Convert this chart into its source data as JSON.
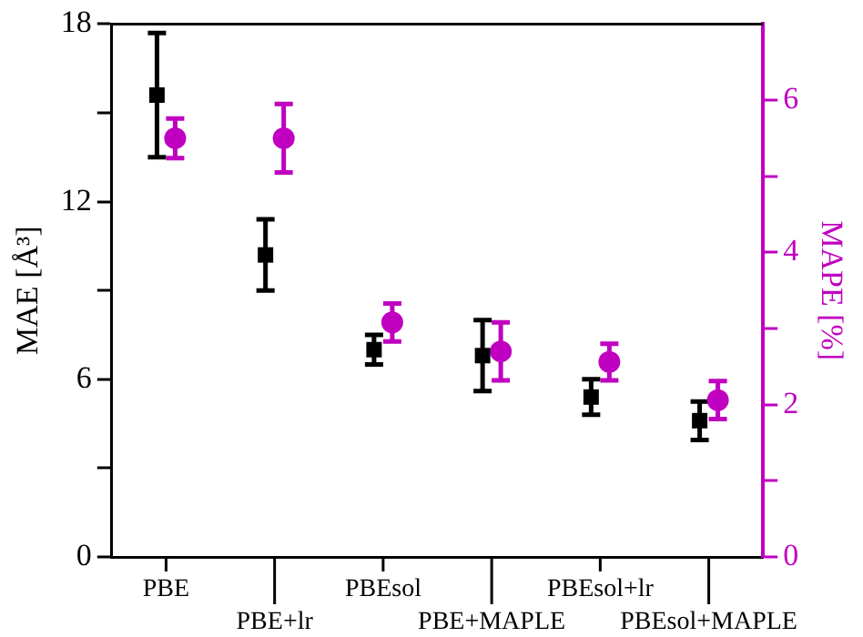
{
  "chart_data": {
    "type": "scatter",
    "categories": [
      "PBE",
      "PBE+lr",
      "PBEsol",
      "PBE+MAPLE",
      "PBEsol+lr",
      "PBEsol+MAPLE"
    ],
    "ylabel": "MAE [Å³]",
    "y2label": "MAPE [%]",
    "ylim": [
      0,
      18
    ],
    "yticks": [
      0,
      {
        "value": 3,
        "label": null
      },
      6,
      {
        "value": 9,
        "label": null
      },
      12,
      {
        "value": 15,
        "label": null
      },
      18
    ],
    "y2lim": [
      0,
      7
    ],
    "y2ticks": [
      0,
      {
        "value": 1,
        "label": null
      },
      2,
      {
        "value": 3,
        "label": null
      },
      4,
      {
        "value": 5,
        "label": null
      },
      6
    ],
    "grid": false,
    "legend": false,
    "series": [
      {
        "color": "#000000",
        "marker": "square",
        "values": [
          15.6,
          10.2,
          7.0,
          6.8,
          5.4,
          4.6
        ],
        "errors": [
          2.1,
          1.2,
          0.5,
          1.2,
          0.6,
          0.65
        ]
      },
      {
        "color": "#c000c0",
        "marker": "circle",
        "axis": "y2",
        "values": [
          5.5,
          5.5,
          3.08,
          2.7,
          2.56,
          2.06
        ],
        "errors": [
          0.26,
          0.45,
          0.25,
          0.38,
          0.24,
          0.25
        ]
      }
    ]
  }
}
